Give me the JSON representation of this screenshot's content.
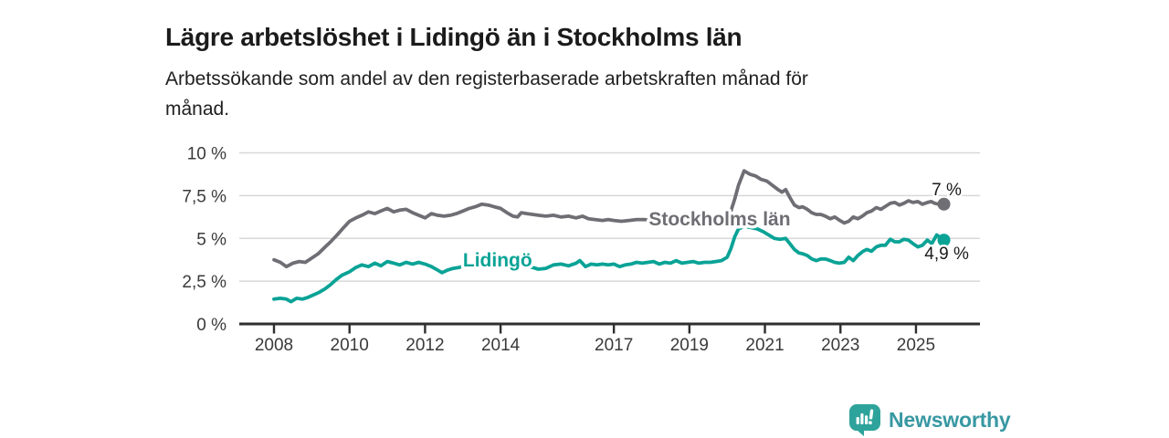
{
  "title": "Lägre arbetslöshet i Lidingö än i Stockholms län",
  "subtitle_lines": [
    "Arbetssökande som andel av den registerbaserade arbetskraften månad för",
    "månad."
  ],
  "branding": {
    "name": "Newsworthy",
    "icon": "newsworthy-speech-bubble-bar-chart-icon",
    "text_color": "#3898a2",
    "icon_color": "#2ea39b"
  },
  "colors": {
    "title_text": "#1b1b1b",
    "axis_text": "#3a3a3a",
    "gridline": "#d8d8d8",
    "axis_line": "#2e2e2e",
    "end_label_text": "#1b1b1b"
  },
  "chart_data": {
    "type": "line",
    "title": "Lägre arbetslöshet i Lidingö än i Stockholms län",
    "subtitle": "Arbetssökande som andel av den registerbaserade arbetskraften månad för månad.",
    "xlabel": "",
    "ylabel": "",
    "ylim": [
      0,
      10
    ],
    "grid": "horizontal",
    "legend_position": "inline-labels",
    "y_ticks": [
      {
        "value": 0,
        "label": "0 %"
      },
      {
        "value": 2.5,
        "label": "2,5 %"
      },
      {
        "value": 5,
        "label": "5 %"
      },
      {
        "value": 7.5,
        "label": "7,5 %"
      },
      {
        "value": 10,
        "label": "10 %"
      }
    ],
    "x_ticks": [
      2008,
      2010,
      2012,
      2014,
      2017,
      2019,
      2021,
      2023,
      2025
    ],
    "x_range_years": [
      2008.0,
      2025.74
    ],
    "series": [
      {
        "name": "Stockholms län",
        "color": "#6e6e74",
        "end_label": "7 %",
        "end_value": 7.0,
        "end_label_pos": "above",
        "label_x": 2019.8,
        "label_y": 6.15,
        "points": [
          [
            2008.0,
            3.75
          ],
          [
            2008.17,
            3.6
          ],
          [
            2008.33,
            3.35
          ],
          [
            2008.5,
            3.55
          ],
          [
            2008.67,
            3.65
          ],
          [
            2008.83,
            3.6
          ],
          [
            2009.0,
            3.85
          ],
          [
            2009.17,
            4.1
          ],
          [
            2009.33,
            4.45
          ],
          [
            2009.5,
            4.8
          ],
          [
            2009.67,
            5.2
          ],
          [
            2009.83,
            5.6
          ],
          [
            2010.0,
            6.0
          ],
          [
            2010.17,
            6.2
          ],
          [
            2010.33,
            6.35
          ],
          [
            2010.5,
            6.55
          ],
          [
            2010.67,
            6.45
          ],
          [
            2010.83,
            6.6
          ],
          [
            2011.0,
            6.75
          ],
          [
            2011.17,
            6.55
          ],
          [
            2011.33,
            6.65
          ],
          [
            2011.5,
            6.7
          ],
          [
            2011.67,
            6.5
          ],
          [
            2011.83,
            6.35
          ],
          [
            2012.0,
            6.2
          ],
          [
            2012.17,
            6.45
          ],
          [
            2012.33,
            6.35
          ],
          [
            2012.5,
            6.3
          ],
          [
            2012.67,
            6.35
          ],
          [
            2012.83,
            6.45
          ],
          [
            2013.0,
            6.6
          ],
          [
            2013.17,
            6.75
          ],
          [
            2013.33,
            6.85
          ],
          [
            2013.5,
            7.0
          ],
          [
            2013.67,
            6.95
          ],
          [
            2013.83,
            6.85
          ],
          [
            2014.0,
            6.75
          ],
          [
            2014.17,
            6.5
          ],
          [
            2014.33,
            6.3
          ],
          [
            2014.45,
            6.25
          ],
          [
            2014.55,
            6.5
          ],
          [
            2014.7,
            6.45
          ],
          [
            2014.85,
            6.4
          ],
          [
            2015.0,
            6.35
          ],
          [
            2015.2,
            6.3
          ],
          [
            2015.4,
            6.35
          ],
          [
            2015.6,
            6.25
          ],
          [
            2015.8,
            6.3
          ],
          [
            2016.0,
            6.2
          ],
          [
            2016.17,
            6.3
          ],
          [
            2016.33,
            6.15
          ],
          [
            2016.5,
            6.1
          ],
          [
            2016.7,
            6.05
          ],
          [
            2016.85,
            6.1
          ],
          [
            2017.0,
            6.05
          ],
          [
            2017.2,
            6.0
          ],
          [
            2017.4,
            6.05
          ],
          [
            2017.6,
            6.1
          ],
          [
            2017.8,
            6.1
          ],
          [
            2018.0,
            6.05
          ],
          [
            2018.25,
            6.0
          ],
          [
            2018.5,
            5.95
          ],
          [
            2018.75,
            5.9
          ],
          [
            2019.0,
            5.9
          ],
          [
            2019.25,
            5.85
          ],
          [
            2019.5,
            5.9
          ],
          [
            2019.75,
            5.95
          ],
          [
            2020.0,
            6.1
          ],
          [
            2020.1,
            6.6
          ],
          [
            2020.2,
            7.3
          ],
          [
            2020.3,
            8.1
          ],
          [
            2020.45,
            8.95
          ],
          [
            2020.6,
            8.75
          ],
          [
            2020.75,
            8.65
          ],
          [
            2020.9,
            8.45
          ],
          [
            2021.05,
            8.35
          ],
          [
            2021.2,
            8.1
          ],
          [
            2021.35,
            7.85
          ],
          [
            2021.45,
            7.7
          ],
          [
            2021.55,
            7.85
          ],
          [
            2021.66,
            7.4
          ],
          [
            2021.78,
            6.95
          ],
          [
            2021.9,
            6.8
          ],
          [
            2022.0,
            6.85
          ],
          [
            2022.12,
            6.7
          ],
          [
            2022.24,
            6.5
          ],
          [
            2022.36,
            6.4
          ],
          [
            2022.48,
            6.4
          ],
          [
            2022.6,
            6.3
          ],
          [
            2022.73,
            6.15
          ],
          [
            2022.85,
            6.25
          ],
          [
            2022.97,
            6.07
          ],
          [
            2023.1,
            5.9
          ],
          [
            2023.22,
            6.0
          ],
          [
            2023.34,
            6.25
          ],
          [
            2023.46,
            6.15
          ],
          [
            2023.58,
            6.3
          ],
          [
            2023.7,
            6.5
          ],
          [
            2023.82,
            6.6
          ],
          [
            2023.95,
            6.8
          ],
          [
            2024.07,
            6.7
          ],
          [
            2024.19,
            6.87
          ],
          [
            2024.32,
            7.05
          ],
          [
            2024.44,
            7.1
          ],
          [
            2024.56,
            6.95
          ],
          [
            2024.68,
            7.05
          ],
          [
            2024.8,
            7.2
          ],
          [
            2024.92,
            7.1
          ],
          [
            2025.05,
            7.15
          ],
          [
            2025.17,
            7.0
          ],
          [
            2025.3,
            7.1
          ],
          [
            2025.4,
            7.15
          ],
          [
            2025.5,
            7.05
          ],
          [
            2025.6,
            7.0
          ],
          [
            2025.74,
            7.0
          ]
        ]
      },
      {
        "name": "Lidingö",
        "color": "#0aa396",
        "end_label": "4,9 %",
        "end_value": 4.9,
        "end_label_pos": "below",
        "label_x": 2013.92,
        "label_y": 3.75,
        "points": [
          [
            2008.0,
            1.45
          ],
          [
            2008.17,
            1.5
          ],
          [
            2008.33,
            1.45
          ],
          [
            2008.45,
            1.3
          ],
          [
            2008.6,
            1.5
          ],
          [
            2008.75,
            1.45
          ],
          [
            2008.9,
            1.55
          ],
          [
            2009.05,
            1.7
          ],
          [
            2009.2,
            1.85
          ],
          [
            2009.35,
            2.05
          ],
          [
            2009.5,
            2.3
          ],
          [
            2009.65,
            2.6
          ],
          [
            2009.8,
            2.85
          ],
          [
            2010.0,
            3.05
          ],
          [
            2010.17,
            3.3
          ],
          [
            2010.33,
            3.45
          ],
          [
            2010.5,
            3.35
          ],
          [
            2010.67,
            3.55
          ],
          [
            2010.83,
            3.4
          ],
          [
            2011.0,
            3.65
          ],
          [
            2011.17,
            3.55
          ],
          [
            2011.33,
            3.45
          ],
          [
            2011.5,
            3.6
          ],
          [
            2011.67,
            3.5
          ],
          [
            2011.83,
            3.6
          ],
          [
            2012.0,
            3.5
          ],
          [
            2012.17,
            3.35
          ],
          [
            2012.33,
            3.15
          ],
          [
            2012.45,
            3.0
          ],
          [
            2012.6,
            3.15
          ],
          [
            2012.75,
            3.25
          ],
          [
            2012.9,
            3.3
          ],
          [
            2013.05,
            3.4
          ],
          [
            2013.2,
            3.45
          ],
          [
            2013.35,
            3.35
          ],
          [
            2013.5,
            3.45
          ],
          [
            2013.65,
            3.35
          ],
          [
            2013.8,
            3.4
          ],
          [
            2013.95,
            3.45
          ],
          [
            2014.1,
            3.5
          ],
          [
            2014.25,
            3.55
          ],
          [
            2014.4,
            3.45
          ],
          [
            2014.55,
            3.4
          ],
          [
            2014.7,
            3.35
          ],
          [
            2014.85,
            3.3
          ],
          [
            2015.0,
            3.2
          ],
          [
            2015.2,
            3.25
          ],
          [
            2015.4,
            3.45
          ],
          [
            2015.6,
            3.5
          ],
          [
            2015.8,
            3.4
          ],
          [
            2016.0,
            3.55
          ],
          [
            2016.1,
            3.7
          ],
          [
            2016.25,
            3.35
          ],
          [
            2016.4,
            3.5
          ],
          [
            2016.55,
            3.45
          ],
          [
            2016.7,
            3.5
          ],
          [
            2016.85,
            3.45
          ],
          [
            2017.0,
            3.5
          ],
          [
            2017.15,
            3.35
          ],
          [
            2017.3,
            3.45
          ],
          [
            2017.45,
            3.5
          ],
          [
            2017.6,
            3.6
          ],
          [
            2017.75,
            3.55
          ],
          [
            2017.9,
            3.6
          ],
          [
            2018.05,
            3.65
          ],
          [
            2018.2,
            3.5
          ],
          [
            2018.35,
            3.6
          ],
          [
            2018.5,
            3.55
          ],
          [
            2018.65,
            3.7
          ],
          [
            2018.8,
            3.55
          ],
          [
            2018.95,
            3.6
          ],
          [
            2019.1,
            3.65
          ],
          [
            2019.25,
            3.55
          ],
          [
            2019.4,
            3.6
          ],
          [
            2019.55,
            3.6
          ],
          [
            2019.7,
            3.65
          ],
          [
            2019.85,
            3.7
          ],
          [
            2020.0,
            3.9
          ],
          [
            2020.1,
            4.4
          ],
          [
            2020.2,
            5.1
          ],
          [
            2020.3,
            5.55
          ],
          [
            2020.45,
            5.7
          ],
          [
            2020.6,
            5.65
          ],
          [
            2020.8,
            5.55
          ],
          [
            2020.95,
            5.4
          ],
          [
            2021.1,
            5.2
          ],
          [
            2021.25,
            5.0
          ],
          [
            2021.4,
            4.95
          ],
          [
            2021.55,
            5.0
          ],
          [
            2021.66,
            4.7
          ],
          [
            2021.78,
            4.35
          ],
          [
            2021.9,
            4.15
          ],
          [
            2022.0,
            4.1
          ],
          [
            2022.12,
            4.0
          ],
          [
            2022.24,
            3.8
          ],
          [
            2022.36,
            3.7
          ],
          [
            2022.48,
            3.8
          ],
          [
            2022.6,
            3.8
          ],
          [
            2022.73,
            3.7
          ],
          [
            2022.85,
            3.6
          ],
          [
            2022.97,
            3.55
          ],
          [
            2023.1,
            3.6
          ],
          [
            2023.22,
            3.9
          ],
          [
            2023.34,
            3.7
          ],
          [
            2023.46,
            4.0
          ],
          [
            2023.6,
            4.25
          ],
          [
            2023.7,
            4.35
          ],
          [
            2023.82,
            4.25
          ],
          [
            2023.95,
            4.5
          ],
          [
            2024.07,
            4.6
          ],
          [
            2024.19,
            4.6
          ],
          [
            2024.32,
            4.95
          ],
          [
            2024.44,
            4.8
          ],
          [
            2024.56,
            4.8
          ],
          [
            2024.68,
            4.95
          ],
          [
            2024.8,
            4.9
          ],
          [
            2024.92,
            4.7
          ],
          [
            2025.05,
            4.5
          ],
          [
            2025.17,
            4.6
          ],
          [
            2025.3,
            4.9
          ],
          [
            2025.42,
            4.7
          ],
          [
            2025.55,
            5.2
          ],
          [
            2025.74,
            4.9
          ]
        ]
      }
    ]
  }
}
